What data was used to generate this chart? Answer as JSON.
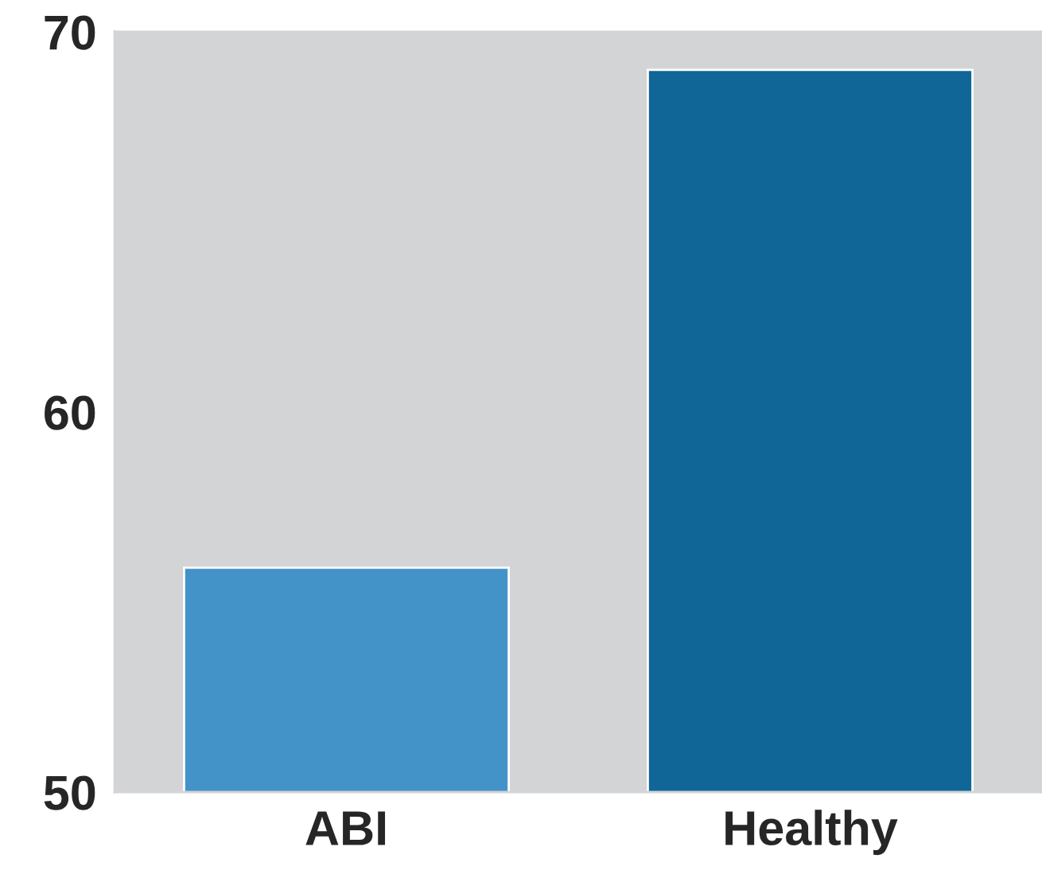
{
  "chart_data": {
    "type": "bar",
    "categories": [
      "ABI",
      "Healthy"
    ],
    "values": [
      55.9,
      69.0
    ],
    "colors": [
      "#4393c8",
      "#0f6697"
    ],
    "ylim": [
      50,
      70
    ],
    "yticks": [
      50,
      60,
      70
    ],
    "grid": false,
    "legend": false
  }
}
